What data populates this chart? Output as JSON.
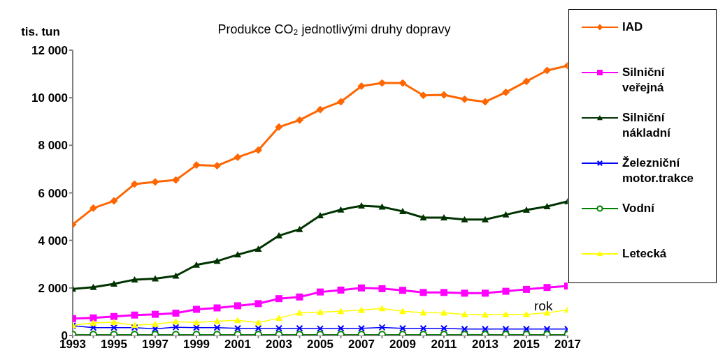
{
  "chart_data": {
    "type": "line",
    "title": "Produkce CO₂ jednotlivými druhy dopravy",
    "ylabel": "tis. tun",
    "xlabel": "rok",
    "categories": [
      "1993",
      null,
      "1995",
      null,
      "1997",
      null,
      "1999",
      null,
      "2001",
      null,
      "2003",
      null,
      "2005",
      null,
      "2007",
      null,
      "2009",
      null,
      "2011",
      null,
      "2013",
      null,
      "2015",
      null,
      "2017"
    ],
    "series": [
      {
        "name": "IAD",
        "color": "#ff6600",
        "marker": "diamond",
        "values": [
          4670,
          5360,
          5660,
          6370,
          6460,
          6540,
          7170,
          7140,
          7500,
          7800,
          8770,
          9060,
          9500,
          9830,
          10490,
          10620,
          10620,
          10100,
          10120,
          9940,
          9830,
          10230,
          10690,
          11150,
          11350
        ]
      },
      {
        "name": "Silniční veřejná",
        "color": "#ff00ff",
        "marker": "square",
        "values": [
          710,
          740,
          800,
          860,
          890,
          940,
          1100,
          1160,
          1250,
          1340,
          1550,
          1620,
          1830,
          1910,
          2000,
          1970,
          1900,
          1810,
          1810,
          1780,
          1780,
          1860,
          1940,
          2020,
          2080
        ]
      },
      {
        "name": "Silniční nákladní",
        "color": "#003300",
        "marker": "triangle",
        "values": [
          1960,
          2030,
          2170,
          2350,
          2390,
          2510,
          2970,
          3130,
          3400,
          3640,
          4200,
          4470,
          5050,
          5290,
          5460,
          5410,
          5220,
          4960,
          4960,
          4880,
          4880,
          5080,
          5280,
          5430,
          5640
        ]
      },
      {
        "name": "Železniční motor.trakce",
        "color": "#0000ff",
        "marker": "cross",
        "values": [
          410,
          330,
          330,
          330,
          280,
          350,
          330,
          330,
          300,
          300,
          300,
          300,
          290,
          300,
          300,
          340,
          300,
          300,
          300,
          270,
          270,
          270,
          270,
          270,
          270
        ]
      },
      {
        "name": "Vodní",
        "color": "#008000",
        "marker": "circle",
        "values": [
          40,
          40,
          40,
          40,
          40,
          40,
          40,
          40,
          40,
          40,
          40,
          40,
          40,
          40,
          40,
          40,
          40,
          40,
          40,
          40,
          40,
          40,
          40,
          40,
          40
        ]
      },
      {
        "name": "Letecká",
        "color": "#ffff00",
        "marker": "triangle",
        "values": [
          430,
          530,
          560,
          430,
          480,
          580,
          550,
          600,
          640,
          540,
          730,
          950,
          980,
          1020,
          1070,
          1140,
          1020,
          960,
          950,
          890,
          870,
          890,
          890,
          950,
          1080
        ]
      }
    ],
    "ylim": [
      0,
      12000
    ],
    "yticks": [
      {
        "value": 0,
        "label": "0"
      },
      {
        "value": 2000,
        "label": "2 000"
      },
      {
        "value": 4000,
        "label": "4 000"
      },
      {
        "value": 6000,
        "label": "6 000"
      },
      {
        "value": 8000,
        "label": "8 000"
      },
      {
        "value": 10000,
        "label": "10 000"
      },
      {
        "value": 12000,
        "label": "12 000"
      }
    ],
    "grid": false,
    "legend": "right"
  }
}
